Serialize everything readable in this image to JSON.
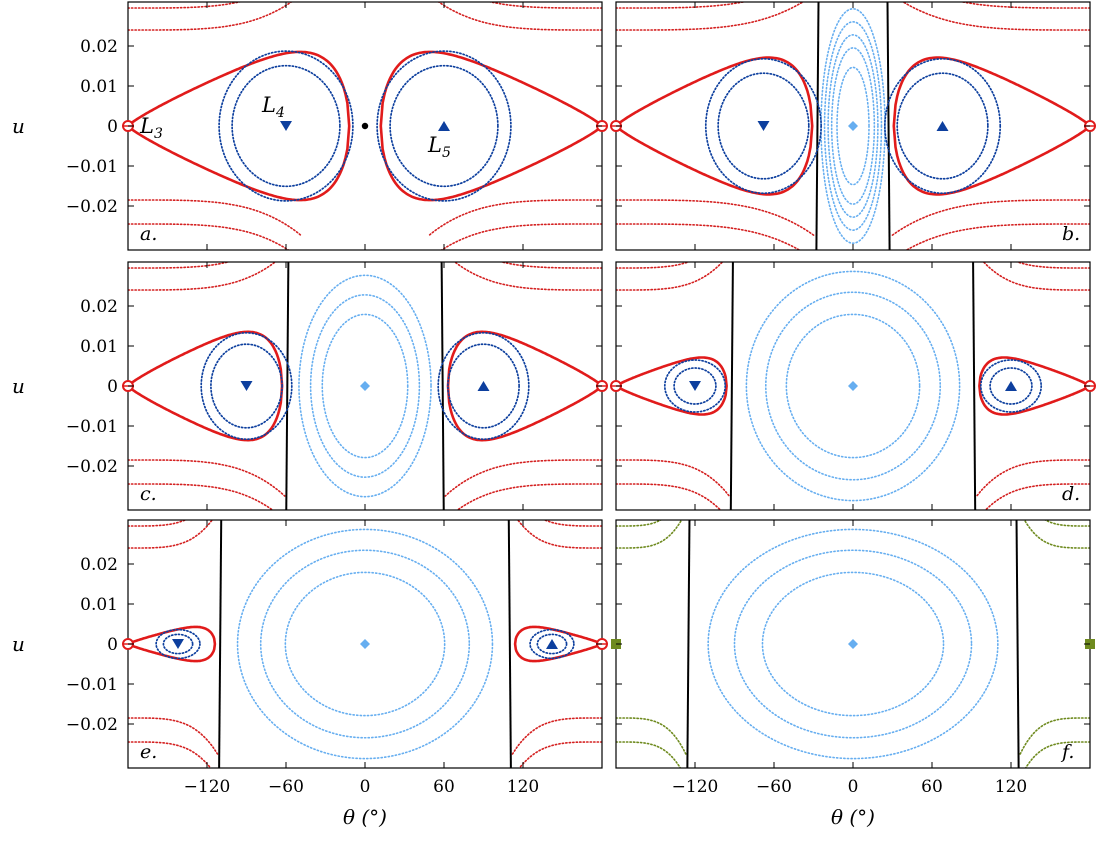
{
  "colors": {
    "separatrix": "#e11b1b",
    "outer": "#d42020",
    "tadpole": "#0d3f9e",
    "inner_blue": "#66aef0",
    "green": "#6e8a1e",
    "black": "#000000"
  },
  "axes": {
    "ylabel": "u",
    "xlabel": "θ (°)",
    "yticks": [
      {
        "value": 0.02,
        "label": "0.02"
      },
      {
        "value": 0.01,
        "label": "0.01"
      },
      {
        "value": 0,
        "label": "0"
      },
      {
        "value": -0.01,
        "label": "−0.01"
      },
      {
        "value": -0.02,
        "label": "−0.02"
      }
    ],
    "xticks": [
      {
        "value": -120,
        "label": "−120"
      },
      {
        "value": -60,
        "label": "−60"
      },
      {
        "value": 0,
        "label": "0"
      },
      {
        "value": 60,
        "label": "60"
      },
      {
        "value": 120,
        "label": "120"
      }
    ]
  },
  "chart_data": {
    "type": "scatter",
    "xlim": [
      -180,
      180
    ],
    "ylim": [
      -0.031,
      0.031
    ],
    "grid": false,
    "panels": [
      {
        "letter": "a.",
        "label_pos": "bottom-left",
        "L4": -60,
        "L5": 60,
        "sep_x": -1,
        "tad_levels": [
          0.58,
          0.72
        ],
        "center_dot": true,
        "labels": {
          "L3": "L3",
          "L4": "L4",
          "L5": "L5"
        },
        "left_edge_marker": "circle",
        "right_edge_marker": "circle"
      },
      {
        "letter": "b.",
        "label_pos": "bottom-right",
        "L4": -68,
        "L5": 68,
        "sep_x": 27,
        "tad_levels": [
          0.55,
          0.7
        ],
        "inner_levels": [
          0.45,
          0.6,
          0.7,
          0.8,
          0.9
        ],
        "left_edge_marker": "circle",
        "right_edge_marker": "circle"
      },
      {
        "letter": "c.",
        "label_pos": "bottom-left",
        "L4": -90,
        "L5": 90,
        "sep_x": 59,
        "tad_levels": [
          0.55,
          0.7
        ],
        "inner_levels": [
          0.55,
          0.7,
          0.85
        ],
        "left_edge_marker": "circle",
        "right_edge_marker": "circle"
      },
      {
        "letter": "d.",
        "label_pos": "bottom-right",
        "L4": -120,
        "L5": 120,
        "sep_x": 92,
        "tad_levels": [
          0.45,
          0.65
        ],
        "inner_levels": [
          0.55,
          0.72,
          0.88
        ],
        "left_edge_marker": "circle",
        "right_edge_marker": "circle"
      },
      {
        "letter": "e.",
        "label_pos": "bottom-left",
        "L4": -142,
        "L5": 142,
        "sep_x": 110,
        "tad_levels": [
          0.4,
          0.6
        ],
        "inner_levels": [
          0.55,
          0.72,
          0.88
        ],
        "left_edge_marker": "circle",
        "right_edge_marker": "circle"
      },
      {
        "letter": "f.",
        "label_pos": "bottom-right",
        "L4": null,
        "L5": null,
        "sep_x": 125,
        "tad_levels": [],
        "inner_levels": [
          0.55,
          0.72,
          0.88
        ],
        "left_edge_marker": "square",
        "right_edge_marker": "square"
      }
    ]
  }
}
